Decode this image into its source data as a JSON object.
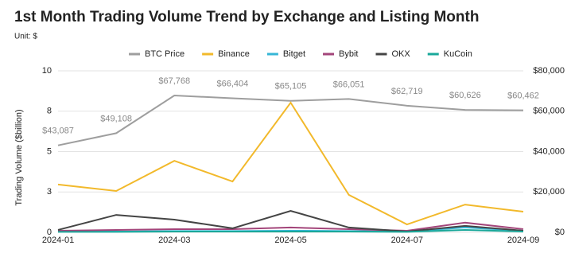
{
  "chart_data": {
    "type": "line",
    "title": "1st Month Trading Volume Trend by Exchange and Listing Month",
    "subtitle": "Unit: $",
    "y_label": "Trading Volume ($billion)",
    "categories": [
      "2024-01",
      null,
      "2024-03",
      null,
      "2024-05",
      null,
      "2024-07",
      null,
      "2024-09"
    ],
    "ylim": [
      0,
      10
    ],
    "yticks": [
      0,
      {
        "value": 2.5,
        "label": "3"
      },
      5,
      {
        "value": 7.5,
        "label": "8"
      },
      10
    ],
    "y2lim": [
      0,
      80000
    ],
    "y2ticks": [
      {
        "value": 0,
        "label": "$0"
      },
      {
        "value": 20000,
        "label": "$20,000"
      },
      {
        "value": 40000,
        "label": "$40,000"
      },
      {
        "value": 60000,
        "label": "$60,000"
      },
      {
        "value": 80000,
        "label": "$80,000"
      }
    ],
    "grid": true,
    "series": [
      {
        "name": "BTC Price",
        "color": "#9e9e9e",
        "axis": "y2",
        "values": [
          43087,
          49108,
          67768,
          66404,
          65105,
          66051,
          62719,
          60626,
          60462
        ],
        "value_labels": [
          "$43,087",
          "$49,108",
          "$67,768",
          "$66,404",
          "$65,105",
          "$66,051",
          "$62,719",
          "$60,626",
          "$60,462"
        ]
      },
      {
        "name": "Binance",
        "color": "#f2b92b",
        "values": [
          2.96,
          2.56,
          4.43,
          3.15,
          8.03,
          2.32,
          0.49,
          1.72,
          1.28
        ]
      },
      {
        "name": "Bitget",
        "color": "#36b6d6",
        "values": [
          0.05,
          0.05,
          0.08,
          0.08,
          0.1,
          0.08,
          0.05,
          0.3,
          0.1
        ]
      },
      {
        "name": "Bybit",
        "color": "#a3457a",
        "values": [
          0.1,
          0.15,
          0.2,
          0.2,
          0.3,
          0.2,
          0.1,
          0.6,
          0.2
        ]
      },
      {
        "name": "OKX",
        "color": "#444444",
        "values": [
          0.15,
          1.08,
          0.79,
          0.25,
          1.33,
          0.3,
          0.05,
          0.4,
          0.1
        ]
      },
      {
        "name": "KuCoin",
        "color": "#1aa89a",
        "values": [
          0.03,
          0.03,
          0.05,
          0.05,
          0.05,
          0.05,
          0.03,
          0.15,
          0.05
        ]
      }
    ]
  }
}
